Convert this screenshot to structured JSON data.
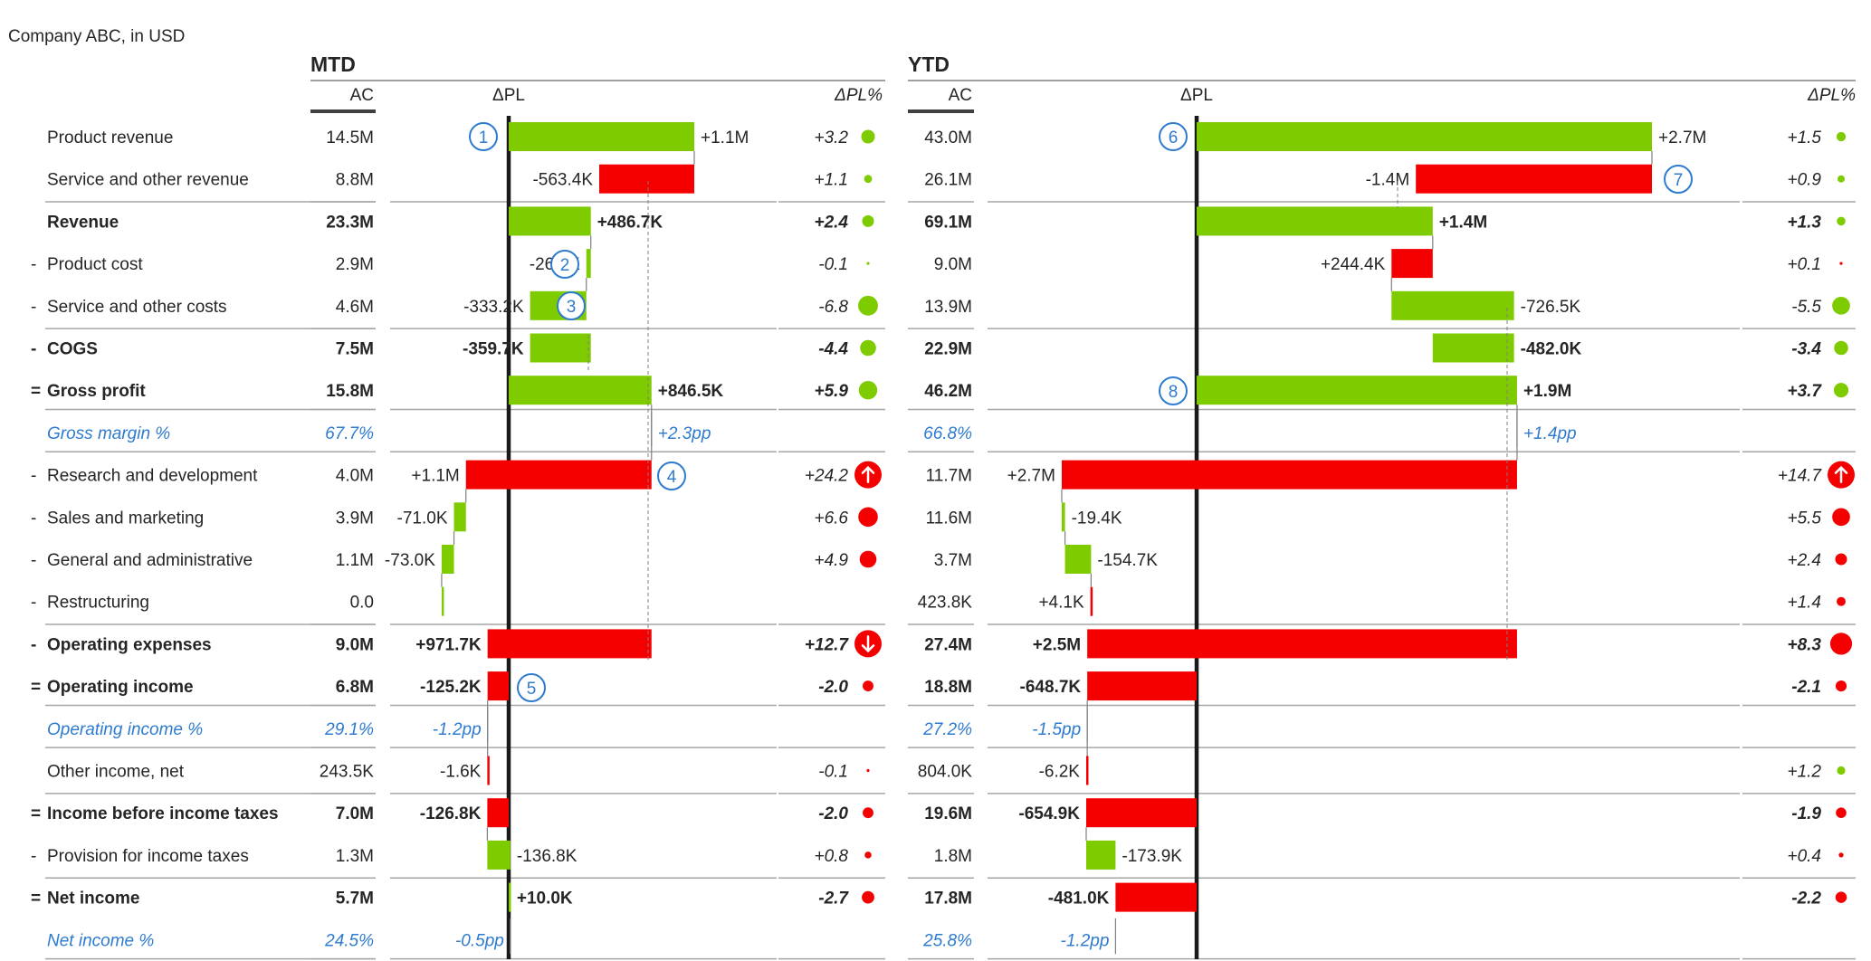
{
  "subtitle": "Company ABC, in USD",
  "sections": [
    {
      "title": "MTD",
      "ac_header": "AC",
      "dpl_header": "ΔPL",
      "pct_header": "ΔPL%"
    },
    {
      "title": "YTD",
      "ac_header": "AC",
      "dpl_header": "ΔPL",
      "pct_header": "ΔPL%"
    }
  ],
  "colors": {
    "positive": "#7ECB00",
    "negative": "#F50000",
    "blue": "#2E7BCF",
    "text": "#252525",
    "axis": "#1a1a1a",
    "separator": "#a6a6a6"
  },
  "rows": [
    {
      "prefix": "",
      "label": "Product revenue",
      "kind": "normal",
      "mtd": {
        "ac": "14.5M",
        "dpl_label": "+1.1M",
        "pct": "+3.2"
      },
      "ytd": {
        "ac": "43.0M",
        "dpl_label": "+2.7M",
        "pct": "+1.5"
      }
    },
    {
      "prefix": "",
      "label": "Service and other revenue",
      "kind": "normal",
      "mtd": {
        "ac": "8.8M",
        "dpl_label": "-563.4K",
        "pct": "+1.1"
      },
      "ytd": {
        "ac": "26.1M",
        "dpl_label": "-1.4M",
        "pct": "+0.9"
      }
    },
    {
      "prefix": "",
      "label": "Revenue",
      "kind": "total",
      "mtd": {
        "ac": "23.3M",
        "dpl_label": "+486.7K",
        "pct": "+2.4"
      },
      "ytd": {
        "ac": "69.1M",
        "dpl_label": "+1.4M",
        "pct": "+1.3"
      }
    },
    {
      "prefix": "-",
      "label": "Product cost",
      "kind": "normal",
      "mtd": {
        "ac": "2.9M",
        "dpl_label": "-26.5K",
        "pct": "-0.1"
      },
      "ytd": {
        "ac": "9.0M",
        "dpl_label": "+244.4K",
        "pct": "+0.1"
      }
    },
    {
      "prefix": "-",
      "label": "Service and other costs",
      "kind": "normal",
      "mtd": {
        "ac": "4.6M",
        "dpl_label": "-333.2K",
        "pct": "-6.8"
      },
      "ytd": {
        "ac": "13.9M",
        "dpl_label": "-726.5K",
        "pct": "-5.5"
      }
    },
    {
      "prefix": "-",
      "label": "COGS",
      "kind": "total",
      "mtd": {
        "ac": "7.5M",
        "dpl_label": "-359.7K",
        "pct": "-4.4"
      },
      "ytd": {
        "ac": "22.9M",
        "dpl_label": "-482.0K",
        "pct": "-3.4"
      }
    },
    {
      "prefix": "=",
      "label": "Gross profit",
      "kind": "total",
      "mtd": {
        "ac": "15.8M",
        "dpl_label": "+846.5K",
        "pct": "+5.9"
      },
      "ytd": {
        "ac": "46.2M",
        "dpl_label": "+1.9M",
        "pct": "+3.7"
      }
    },
    {
      "prefix": "",
      "label": "Gross margin %",
      "kind": "ratio",
      "mtd": {
        "ac": "67.7%",
        "dpl_label": "+2.3pp",
        "pct": ""
      },
      "ytd": {
        "ac": "66.8%",
        "dpl_label": "+1.4pp",
        "pct": ""
      }
    },
    {
      "prefix": "-",
      "label": "Research and development",
      "kind": "normal",
      "mtd": {
        "ac": "4.0M",
        "dpl_label": "+1.1M",
        "pct": "+24.2"
      },
      "ytd": {
        "ac": "11.7M",
        "dpl_label": "+2.7M",
        "pct": "+14.7"
      }
    },
    {
      "prefix": "-",
      "label": "Sales and marketing",
      "kind": "normal",
      "mtd": {
        "ac": "3.9M",
        "dpl_label": "-71.0K",
        "pct": "+6.6"
      },
      "ytd": {
        "ac": "11.6M",
        "dpl_label": "-19.4K",
        "pct": "+5.5"
      }
    },
    {
      "prefix": "-",
      "label": "General and administrative",
      "kind": "normal",
      "mtd": {
        "ac": "1.1M",
        "dpl_label": "-73.0K",
        "pct": "+4.9"
      },
      "ytd": {
        "ac": "3.7M",
        "dpl_label": "-154.7K",
        "pct": "+2.4"
      }
    },
    {
      "prefix": "-",
      "label": "Restructuring",
      "kind": "normal",
      "mtd": {
        "ac": "0.0",
        "dpl_label": "",
        "pct": ""
      },
      "ytd": {
        "ac": "423.8K",
        "dpl_label": "+4.1K",
        "pct": "+1.4"
      }
    },
    {
      "prefix": "-",
      "label": "Operating expenses",
      "kind": "total",
      "mtd": {
        "ac": "9.0M",
        "dpl_label": "+971.7K",
        "pct": "+12.7"
      },
      "ytd": {
        "ac": "27.4M",
        "dpl_label": "+2.5M",
        "pct": "+8.3"
      }
    },
    {
      "prefix": "=",
      "label": "Operating income",
      "kind": "total",
      "mtd": {
        "ac": "6.8M",
        "dpl_label": "-125.2K",
        "pct": "-2.0"
      },
      "ytd": {
        "ac": "18.8M",
        "dpl_label": "-648.7K",
        "pct": "-2.1"
      }
    },
    {
      "prefix": "",
      "label": "Operating income %",
      "kind": "ratio",
      "mtd": {
        "ac": "29.1%",
        "dpl_label": "-1.2pp",
        "pct": ""
      },
      "ytd": {
        "ac": "27.2%",
        "dpl_label": "-1.5pp",
        "pct": ""
      }
    },
    {
      "prefix": "",
      "label": "Other income, net",
      "kind": "normal",
      "mtd": {
        "ac": "243.5K",
        "dpl_label": "-1.6K",
        "pct": "-0.1"
      },
      "ytd": {
        "ac": "804.0K",
        "dpl_label": "-6.2K",
        "pct": "+1.2"
      }
    },
    {
      "prefix": "=",
      "label": "Income before income taxes",
      "kind": "total",
      "mtd": {
        "ac": "7.0M",
        "dpl_label": "-126.8K",
        "pct": "-2.0"
      },
      "ytd": {
        "ac": "19.6M",
        "dpl_label": "-654.9K",
        "pct": "-1.9"
      }
    },
    {
      "prefix": "-",
      "label": "Provision for income taxes",
      "kind": "normal",
      "mtd": {
        "ac": "1.3M",
        "dpl_label": "-136.8K",
        "pct": "+0.8"
      },
      "ytd": {
        "ac": "1.8M",
        "dpl_label": "-173.9K",
        "pct": "+0.4"
      }
    },
    {
      "prefix": "=",
      "label": "Net income",
      "kind": "total",
      "mtd": {
        "ac": "5.7M",
        "dpl_label": "+10.0K",
        "pct": "-2.7"
      },
      "ytd": {
        "ac": "17.8M",
        "dpl_label": "-481.0K",
        "pct": "-2.2"
      }
    },
    {
      "prefix": "",
      "label": "Net income %",
      "kind": "ratio",
      "mtd": {
        "ac": "24.5%",
        "dpl_label": "-0.5pp",
        "pct": ""
      },
      "ytd": {
        "ac": "25.8%",
        "dpl_label": "-1.2pp",
        "pct": ""
      }
    }
  ],
  "chart_data": [
    {
      "type": "bar",
      "title": "MTD",
      "chart": "waterfall",
      "unit": "USD",
      "categories": [
        "Product revenue",
        "Service and other revenue",
        "Revenue",
        "Product cost",
        "Service and other costs",
        "COGS",
        "Gross profit",
        "Research and development",
        "Sales and marketing",
        "General and administrative",
        "Restructuring",
        "Operating expenses",
        "Operating income",
        "Other income, net",
        "Income before income taxes",
        "Provision for income taxes",
        "Net income"
      ],
      "series": [
        {
          "name": "ΔPL",
          "values": [
            1100000,
            -563400,
            486700,
            -26500,
            -333200,
            -359700,
            846500,
            1100000,
            -71000,
            -73000,
            0,
            971700,
            -125200,
            -1600,
            -126800,
            -136800,
            10000
          ],
          "start": [
            0,
            1100000,
            0,
            486700,
            460200,
            486700,
            0,
            846500,
            -253500,
            -324500,
            -397500,
            846500,
            0,
            -125200,
            0,
            -126800,
            0
          ],
          "end": [
            1100000,
            536600,
            486700,
            460200,
            126900,
            126900,
            846500,
            -253500,
            -324500,
            -397500,
            -397500,
            -125200,
            -125200,
            -126800,
            -126800,
            10000,
            10000
          ],
          "good": [
            true,
            false,
            true,
            true,
            true,
            true,
            true,
            false,
            true,
            true,
            true,
            false,
            false,
            false,
            false,
            true,
            true
          ],
          "is_total": [
            false,
            false,
            true,
            false,
            false,
            true,
            true,
            false,
            false,
            false,
            false,
            true,
            true,
            false,
            true,
            false,
            true
          ]
        },
        {
          "name": "ΔPL%",
          "values": [
            3.2,
            1.1,
            2.4,
            -0.1,
            -6.8,
            -4.4,
            5.9,
            24.2,
            6.6,
            4.9,
            null,
            12.7,
            -2.0,
            -0.1,
            -2.0,
            0.8,
            -2.7
          ],
          "good": [
            true,
            true,
            true,
            true,
            true,
            true,
            true,
            false,
            false,
            false,
            null,
            false,
            false,
            false,
            false,
            false,
            false
          ]
        }
      ],
      "ratios": {
        "Gross margin %": 2.3,
        "Operating income %": -1.2,
        "Net income %": -0.5
      }
    },
    {
      "type": "bar",
      "title": "YTD",
      "chart": "waterfall",
      "unit": "USD",
      "categories": [
        "Product revenue",
        "Service and other revenue",
        "Revenue",
        "Product cost",
        "Service and other costs",
        "COGS",
        "Gross profit",
        "Research and development",
        "Sales and marketing",
        "General and administrative",
        "Restructuring",
        "Operating expenses",
        "Operating income",
        "Other income, net",
        "Income before income taxes",
        "Provision for income taxes",
        "Net income"
      ],
      "series": [
        {
          "name": "ΔPL",
          "values": [
            2700000,
            -1400000,
            1400000,
            244400,
            -726500,
            -482000,
            1900000,
            2700000,
            -19400,
            -154700,
            4100,
            2500000,
            -648700,
            -6200,
            -654900,
            -173900,
            -481000
          ],
          "start": [
            0,
            2700000,
            0,
            1400000,
            1155600,
            1400000,
            0,
            1900000,
            -800000,
            -780600,
            -625900,
            1900000,
            0,
            -648700,
            0,
            -654900,
            0
          ],
          "end": [
            2700000,
            1300000,
            1400000,
            1155600,
            1882100,
            918000,
            1900000,
            -800000,
            -780600,
            -625900,
            -630000,
            -648700,
            -648700,
            -654900,
            -654900,
            -481000,
            -481000
          ],
          "good": [
            true,
            false,
            true,
            false,
            true,
            true,
            true,
            false,
            true,
            true,
            false,
            false,
            false,
            false,
            false,
            true,
            false
          ],
          "is_total": [
            false,
            false,
            true,
            false,
            false,
            true,
            true,
            false,
            false,
            false,
            false,
            true,
            true,
            false,
            true,
            false,
            true
          ]
        },
        {
          "name": "ΔPL%",
          "values": [
            1.5,
            0.9,
            1.3,
            0.1,
            -5.5,
            -3.4,
            3.7,
            14.7,
            5.5,
            2.4,
            1.4,
            8.3,
            -2.1,
            1.2,
            -1.9,
            0.4,
            -2.2
          ],
          "good": [
            true,
            true,
            true,
            false,
            true,
            true,
            true,
            false,
            false,
            false,
            false,
            false,
            false,
            true,
            false,
            false,
            false
          ]
        }
      ],
      "ratios": {
        "Gross margin %": 1.4,
        "Operating income %": -1.5,
        "Net income %": -1.2
      }
    }
  ],
  "mtd_bars": [
    {
      "row": 0,
      "from": 0,
      "to": 1100000,
      "good": true
    },
    {
      "row": 1,
      "from": 1100000,
      "to": 536600,
      "good": false
    },
    {
      "row": 2,
      "from": 0,
      "to": 486700,
      "good": true
    },
    {
      "row": 3,
      "from": 486700,
      "to": 460200,
      "good": true
    },
    {
      "row": 4,
      "from": 460200,
      "to": 126900,
      "good": true
    },
    {
      "row": 5,
      "from": 486700,
      "to": 126900,
      "good": true
    },
    {
      "row": 6,
      "from": 0,
      "to": 846500,
      "good": true
    },
    {
      "row": 8,
      "from": 846500,
      "to": -253500,
      "good": false
    },
    {
      "row": 9,
      "from": -253500,
      "to": -324500,
      "good": true
    },
    {
      "row": 10,
      "from": -324500,
      "to": -397500,
      "good": true
    },
    {
      "row": 11,
      "from": -397500,
      "to": -397500,
      "good": true
    },
    {
      "row": 12,
      "from": 846500,
      "to": -125200,
      "good": false
    },
    {
      "row": 13,
      "from": 0,
      "to": -125200,
      "good": false
    },
    {
      "row": 15,
      "from": -125200,
      "to": -126800,
      "good": false
    },
    {
      "row": 16,
      "from": 0,
      "to": -126800,
      "good": false
    },
    {
      "row": 17,
      "from": -126800,
      "to": 10000,
      "good": true
    },
    {
      "row": 18,
      "from": 0,
      "to": 10000,
      "good": true
    }
  ],
  "ytd_bars": [
    {
      "row": 0,
      "from": 0,
      "to": 2700000,
      "good": true
    },
    {
      "row": 1,
      "from": 2700000,
      "to": 1300000,
      "good": false
    },
    {
      "row": 2,
      "from": 0,
      "to": 1400000,
      "good": true
    },
    {
      "row": 3,
      "from": 1400000,
      "to": 1155600,
      "good": false
    },
    {
      "row": 4,
      "from": 1155600,
      "to": 1882100,
      "good": true
    },
    {
      "row": 5,
      "from": 1400000,
      "to": 1882100,
      "good": true
    },
    {
      "row": 6,
      "from": 0,
      "to": 1900000,
      "good": true
    },
    {
      "row": 8,
      "from": 1900000,
      "to": -800000,
      "good": false
    },
    {
      "row": 9,
      "from": -800000,
      "to": -780600,
      "good": true
    },
    {
      "row": 10,
      "from": -780600,
      "to": -625900,
      "good": true
    },
    {
      "row": 11,
      "from": -625900,
      "to": -630000,
      "good": false
    },
    {
      "row": 12,
      "from": 1900000,
      "to": -648700,
      "good": false
    },
    {
      "row": 13,
      "from": 0,
      "to": -648700,
      "good": false
    },
    {
      "row": 15,
      "from": -648700,
      "to": -654900,
      "good": false
    },
    {
      "row": 16,
      "from": 0,
      "to": -654900,
      "good": false
    },
    {
      "row": 17,
      "from": -654900,
      "to": -481000,
      "good": true
    },
    {
      "row": 18,
      "from": 0,
      "to": -481000,
      "good": false
    }
  ],
  "mtd_pct": [
    {
      "row": 0,
      "v": 3.2,
      "good": true
    },
    {
      "row": 1,
      "v": 1.1,
      "good": true
    },
    {
      "row": 2,
      "v": 2.4,
      "good": true
    },
    {
      "row": 3,
      "v": 0.1,
      "good": true
    },
    {
      "row": 4,
      "v": 6.8,
      "good": true
    },
    {
      "row": 5,
      "v": 4.4,
      "good": true
    },
    {
      "row": 6,
      "v": 5.9,
      "good": true
    },
    {
      "row": 8,
      "v": 24.2,
      "good": false,
      "arrow": "up"
    },
    {
      "row": 9,
      "v": 6.6,
      "good": false
    },
    {
      "row": 10,
      "v": 4.9,
      "good": false
    },
    {
      "row": 12,
      "v": 12.7,
      "good": false,
      "arrow": "down"
    },
    {
      "row": 13,
      "v": 2.0,
      "good": false
    },
    {
      "row": 15,
      "v": 0.1,
      "good": false
    },
    {
      "row": 16,
      "v": 2.0,
      "good": false
    },
    {
      "row": 17,
      "v": 0.8,
      "good": false
    },
    {
      "row": 18,
      "v": 2.7,
      "good": false
    }
  ],
  "ytd_pct": [
    {
      "row": 0,
      "v": 1.5,
      "good": true
    },
    {
      "row": 1,
      "v": 0.9,
      "good": true
    },
    {
      "row": 2,
      "v": 1.3,
      "good": true
    },
    {
      "row": 3,
      "v": 0.1,
      "good": false
    },
    {
      "row": 4,
      "v": 5.5,
      "good": true
    },
    {
      "row": 5,
      "v": 3.4,
      "good": true
    },
    {
      "row": 6,
      "v": 3.7,
      "good": true
    },
    {
      "row": 8,
      "v": 14.7,
      "good": false,
      "arrow": "up"
    },
    {
      "row": 9,
      "v": 5.5,
      "good": false
    },
    {
      "row": 10,
      "v": 2.4,
      "good": false
    },
    {
      "row": 11,
      "v": 1.4,
      "good": false
    },
    {
      "row": 12,
      "v": 8.3,
      "good": false
    },
    {
      "row": 13,
      "v": 2.1,
      "good": false
    },
    {
      "row": 15,
      "v": 1.2,
      "good": true
    },
    {
      "row": 16,
      "v": 1.9,
      "good": false
    },
    {
      "row": 17,
      "v": 0.4,
      "good": false
    },
    {
      "row": 18,
      "v": 2.2,
      "good": false
    }
  ],
  "mtd_callouts": [
    {
      "n": "1",
      "row": 0
    },
    {
      "n": "2",
      "row": 3
    },
    {
      "n": "3",
      "row": 4
    },
    {
      "n": "4",
      "row": 8
    },
    {
      "n": "5",
      "row": 13
    }
  ],
  "ytd_callouts": [
    {
      "n": "6",
      "row": 0
    },
    {
      "n": "7",
      "row": 1
    },
    {
      "n": "8",
      "row": 6
    }
  ]
}
